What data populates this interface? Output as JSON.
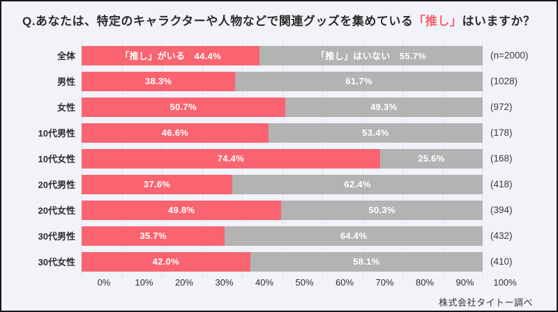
{
  "title": {
    "prefix": "Q.あなたは、特定のキャラクターや人物などで関連グッズを集めている",
    "highlight": "「推し」",
    "suffix": "はいますか？"
  },
  "colors": {
    "background": "#F1F3F8",
    "yes": "#F96470",
    "no": "#B3B3B3",
    "gridline": "#DDE1E9",
    "title_text": "#2B2B2B",
    "accent": "#F7606B"
  },
  "rows": [
    {
      "label": "全体",
      "yes_value": 44.4,
      "yes_text": "「推し」がいる　44.4%",
      "no_value": 55.7,
      "no_text": "「推し」はいない　55.7%",
      "n": "(n=2000)"
    },
    {
      "label": "男性",
      "yes_value": 38.3,
      "yes_text": "38.3%",
      "no_value": 61.7,
      "no_text": "61.7%",
      "n": "(1028)"
    },
    {
      "label": "女性",
      "yes_value": 50.7,
      "yes_text": "50.7%",
      "no_value": 49.3,
      "no_text": "49.3%",
      "n": "(972)"
    },
    {
      "label": "10代男性",
      "yes_value": 46.6,
      "yes_text": "46.6%",
      "no_value": 53.4,
      "no_text": "53.4%",
      "n": "(178)"
    },
    {
      "label": "10代女性",
      "yes_value": 74.4,
      "yes_text": "74.4%",
      "no_value": 25.6,
      "no_text": "25.6%",
      "n": "(168)"
    },
    {
      "label": "20代男性",
      "yes_value": 37.6,
      "yes_text": "37.6%",
      "no_value": 62.4,
      "no_text": "62.4%",
      "n": "(418)"
    },
    {
      "label": "20代女性",
      "yes_value": 49.8,
      "yes_text": "49.8%",
      "no_value": 50.3,
      "no_text": "50.3%",
      "n": "(394)"
    },
    {
      "label": "30代男性",
      "yes_value": 35.7,
      "yes_text": "35.7%",
      "no_value": 64.4,
      "no_text": "64.4%",
      "n": "(432)"
    },
    {
      "label": "30代女性",
      "yes_value": 42.0,
      "yes_text": "42.0%",
      "no_value": 58.1,
      "no_text": "58.1%",
      "n": "(410)"
    }
  ],
  "axis": {
    "ticks": [
      "0%",
      "10%",
      "20%",
      "30%",
      "40%",
      "50%",
      "60%",
      "70%",
      "80%",
      "90%",
      "100%"
    ]
  },
  "footer": "株式会社タイトー調べ",
  "chart_data": {
    "type": "bar",
    "orientation": "horizontal",
    "stacked": true,
    "title": "Q.あなたは、特定のキャラクターや人物などで関連グッズを集めている「推し」はいますか？",
    "categories": [
      "全体",
      "男性",
      "女性",
      "10代男性",
      "10代女性",
      "20代男性",
      "20代女性",
      "30代男性",
      "30代女性"
    ],
    "series": [
      {
        "name": "「推し」がいる",
        "color": "#F96470",
        "values": [
          44.4,
          38.3,
          50.7,
          46.6,
          74.4,
          37.6,
          49.8,
          35.7,
          42.0
        ]
      },
      {
        "name": "「推し」はいない",
        "color": "#B3B3B3",
        "values": [
          55.7,
          61.7,
          49.3,
          53.4,
          25.6,
          62.4,
          50.3,
          64.4,
          58.1
        ]
      }
    ],
    "sample_sizes": [
      2000,
      1028,
      972,
      178,
      168,
      418,
      394,
      432,
      410
    ],
    "xlim": [
      0,
      100
    ],
    "x_ticks": [
      "0%",
      "10%",
      "20%",
      "30%",
      "40%",
      "50%",
      "60%",
      "70%",
      "80%",
      "90%",
      "100%"
    ],
    "grid": true,
    "legend_position": "inside-first-bar",
    "value_labels": "inside-segments",
    "source_note": "株式会社タイトー調べ"
  }
}
